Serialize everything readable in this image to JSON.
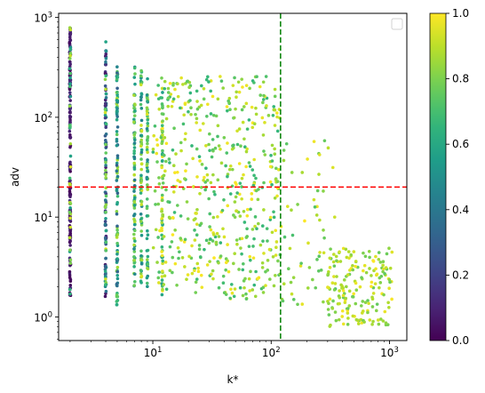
{
  "chart_data": {
    "type": "scatter",
    "xlabel": "k*",
    "ylabel": "adv",
    "xscale": "log",
    "yscale": "log",
    "xlim": [
      1.6,
      1400
    ],
    "ylim": [
      0.58,
      1100
    ],
    "x_ticks": [
      {
        "value": 10,
        "base": "10",
        "exp": "1"
      },
      {
        "value": 100,
        "base": "10",
        "exp": "2"
      },
      {
        "value": 1000,
        "base": "10",
        "exp": "3"
      }
    ],
    "y_ticks": [
      {
        "value": 1,
        "base": "10",
        "exp": "0"
      },
      {
        "value": 10,
        "base": "10",
        "exp": "1"
      },
      {
        "value": 100,
        "base": "10",
        "exp": "2"
      },
      {
        "value": 1000,
        "base": "10",
        "exp": "3"
      }
    ],
    "hline": {
      "y": 20,
      "color": "#ff0000",
      "style": "dashed"
    },
    "vline": {
      "x": 120,
      "color": "#008000",
      "style": "dashed"
    },
    "legend": {
      "placement": "top-right",
      "entries": []
    },
    "colorbar": {
      "min": 0.0,
      "max": 1.0,
      "colormap": "viridis",
      "ticks": [
        "0.0",
        "0.2",
        "0.4",
        "0.6",
        "0.8",
        "1.0"
      ]
    },
    "strips": [
      {
        "x": 2,
        "y_min": 1.6,
        "y_max": 800,
        "c_min": 0.0,
        "c_max": 0.15,
        "n": 170
      },
      {
        "x": 2,
        "y_min": 1.6,
        "y_max": 800,
        "c_min": 0.5,
        "c_max": 0.95,
        "n": 40
      },
      {
        "x": 4,
        "y_min": 1.6,
        "y_max": 680,
        "c_min": 0.05,
        "c_max": 0.6,
        "n": 100
      },
      {
        "x": 4,
        "y_min": 1.6,
        "y_max": 300,
        "c_min": 0.6,
        "c_max": 0.95,
        "n": 25
      },
      {
        "x": 5,
        "y_min": 1.3,
        "y_max": 380,
        "c_min": 0.3,
        "c_max": 0.9,
        "n": 100
      },
      {
        "x": 7,
        "y_min": 2.0,
        "y_max": 320,
        "c_min": 0.4,
        "c_max": 0.9,
        "n": 90
      },
      {
        "x": 8,
        "y_min": 2.0,
        "y_max": 300,
        "c_min": 0.45,
        "c_max": 0.95,
        "n": 80
      },
      {
        "x": 9,
        "y_min": 2.0,
        "y_max": 270,
        "c_min": 0.45,
        "c_max": 0.95,
        "n": 70
      },
      {
        "x": 12,
        "y_min": 1.6,
        "y_max": 250,
        "c_min": 0.55,
        "c_max": 1.0,
        "n": 70
      }
    ],
    "clouds": [
      {
        "x_min": 10,
        "x_max": 120,
        "y_min": 1.5,
        "y_max": 260,
        "c_min": 0.65,
        "c_max": 1.0,
        "n": 520
      },
      {
        "x_min": 120,
        "x_max": 350,
        "y_min": 1.3,
        "y_max": 60,
        "c_min": 0.7,
        "c_max": 1.0,
        "n": 60
      },
      {
        "x_min": 300,
        "x_max": 1050,
        "y_min": 0.8,
        "y_max": 5,
        "c_min": 0.75,
        "c_max": 1.0,
        "n": 180
      }
    ]
  }
}
